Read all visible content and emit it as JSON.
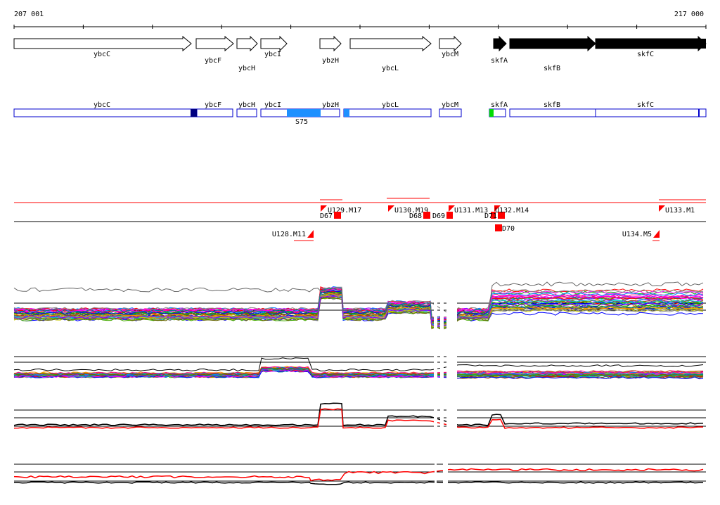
{
  "ruler": {
    "start_label": "207 001",
    "end_label": "217 000"
  },
  "genes_top": [
    {
      "name": "ybcC",
      "filled": false,
      "label_row": 0
    },
    {
      "name": "ybcF",
      "filled": false,
      "label_row": 1
    },
    {
      "name": "ybcH",
      "filled": false,
      "label_row": 2
    },
    {
      "name": "ybcI",
      "filled": false,
      "label_row": 0
    },
    {
      "name": "ybzH",
      "filled": false,
      "label_row": 1
    },
    {
      "name": "ybcL",
      "filled": false,
      "label_row": 2
    },
    {
      "name": "ybcM",
      "filled": false,
      "label_row": 0
    },
    {
      "name": "skfA",
      "filled": true,
      "label_row": 1
    },
    {
      "name": "skfB",
      "filled": true,
      "label_row": 2
    },
    {
      "name": "skfC",
      "filled": true,
      "label_row": 0
    }
  ],
  "annotations": [
    {
      "name": "ybcC"
    },
    {
      "name": "ybcF"
    },
    {
      "name": "ybcH"
    },
    {
      "name": "ybcI"
    },
    {
      "name": "ybzH"
    },
    {
      "name": "ybcL"
    },
    {
      "name": "ybcM"
    },
    {
      "name": "skfA"
    },
    {
      "name": "skfB"
    },
    {
      "name": "skfC"
    }
  ],
  "segment_label": "S75",
  "features": [
    {
      "name": "U128.M11"
    },
    {
      "name": "U129.M17"
    },
    {
      "name": "D67"
    },
    {
      "name": "U130.M19"
    },
    {
      "name": "D68"
    },
    {
      "name": "D69"
    },
    {
      "name": "U131.M13"
    },
    {
      "name": "D71"
    },
    {
      "name": "U132.M14"
    },
    {
      "name": "D70"
    },
    {
      "name": "U133.M1"
    },
    {
      "name": "U134.M5"
    }
  ],
  "colors": {
    "gene_outline": "#000000",
    "annotation_blue": "#0000cc",
    "dark_blue_block": "#000080",
    "light_blue_block": "#1e90ff",
    "green_block": "#00dd00",
    "feature_red": "#ff0000"
  }
}
